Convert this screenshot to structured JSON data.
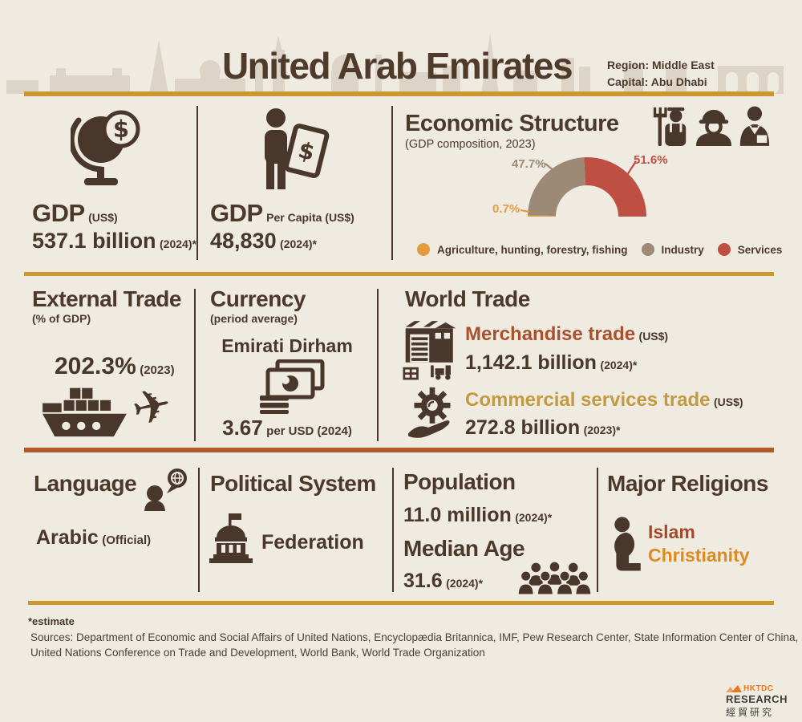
{
  "header": {
    "title": "United Arab Emirates",
    "region": "Region: Middle East",
    "capital": "Capital: Abu Dhabi"
  },
  "gdp": {
    "title": "GDP",
    "unit": "(US$)",
    "value": "537.1 billion",
    "year": "(2024)*"
  },
  "gdp_per_capita": {
    "title": "GDP",
    "unit": "Per Capita (US$)",
    "value": "48,830",
    "year": "(2024)*"
  },
  "economic_structure": {
    "title": "Economic Structure",
    "subtitle": "(GDP composition, 2023)"
  },
  "chart_data": {
    "type": "pie",
    "variant": "semi-donut",
    "title": "Economic Structure (GDP composition, 2023)",
    "unit": "%",
    "segments": [
      {
        "label": "Agriculture, hunting, forestry, fishing",
        "value": 0.7,
        "display": "0.7%",
        "color": "#E59C3E"
      },
      {
        "label": "Industry",
        "value": 47.7,
        "display": "47.7%",
        "color": "#9C8976"
      },
      {
        "label": "Services",
        "value": 51.6,
        "display": "51.6%",
        "color": "#BF4F42"
      }
    ],
    "legend_position": "bottom"
  },
  "external_trade": {
    "title": "External Trade",
    "subtitle": "(% of GDP)",
    "value": "202.3%",
    "year": "(2023)"
  },
  "currency": {
    "title": "Currency",
    "subtitle": "(period average)",
    "name": "Emirati Dirham",
    "rate": "3.67",
    "rate_suffix": "per USD (2024)"
  },
  "world_trade": {
    "title": "World Trade",
    "merchandise": {
      "label": "Merchandise trade",
      "unit": "(US$)",
      "value": "1,142.1 billion",
      "year": "(2024)*",
      "color": "#A8512F"
    },
    "services": {
      "label": "Commercial services trade",
      "unit": "(US$)",
      "value": "272.8 billion",
      "year": "(2023)*",
      "color": "#C49A41"
    }
  },
  "language": {
    "title": "Language",
    "value": "Arabic",
    "note": "(Official)"
  },
  "political_system": {
    "title": "Political System",
    "value": "Federation"
  },
  "population": {
    "title": "Population",
    "value": "11.0 million",
    "year": "(2024)*"
  },
  "median_age": {
    "title": "Median Age",
    "value": "31.6",
    "year": "(2024)*"
  },
  "religions": {
    "title": "Major Religions",
    "items": [
      {
        "name": "Islam",
        "color": "#A34A2A"
      },
      {
        "name": "Christianity",
        "color": "#DD8A20"
      }
    ]
  },
  "footer": {
    "estimate": "*estimate",
    "sources_line1": "Sources: Department of Economic and Social Affairs of United Nations, Encyclopædia Britannica, IMF, Pew Research Center, State Information Center of China,",
    "sources_line2": "United Nations Conference on Trade and Development, World Bank, World Trade Organization"
  },
  "logo": {
    "brand": "HKTDC",
    "line1": "RESEARCH",
    "line2": "經貿研究"
  },
  "theme": {
    "background": "#F0EBE1",
    "ink": "#4A372B",
    "gold_line": "#C9982F",
    "rust_line": "#AF5A2E",
    "skyline": "#DCD4C6"
  }
}
